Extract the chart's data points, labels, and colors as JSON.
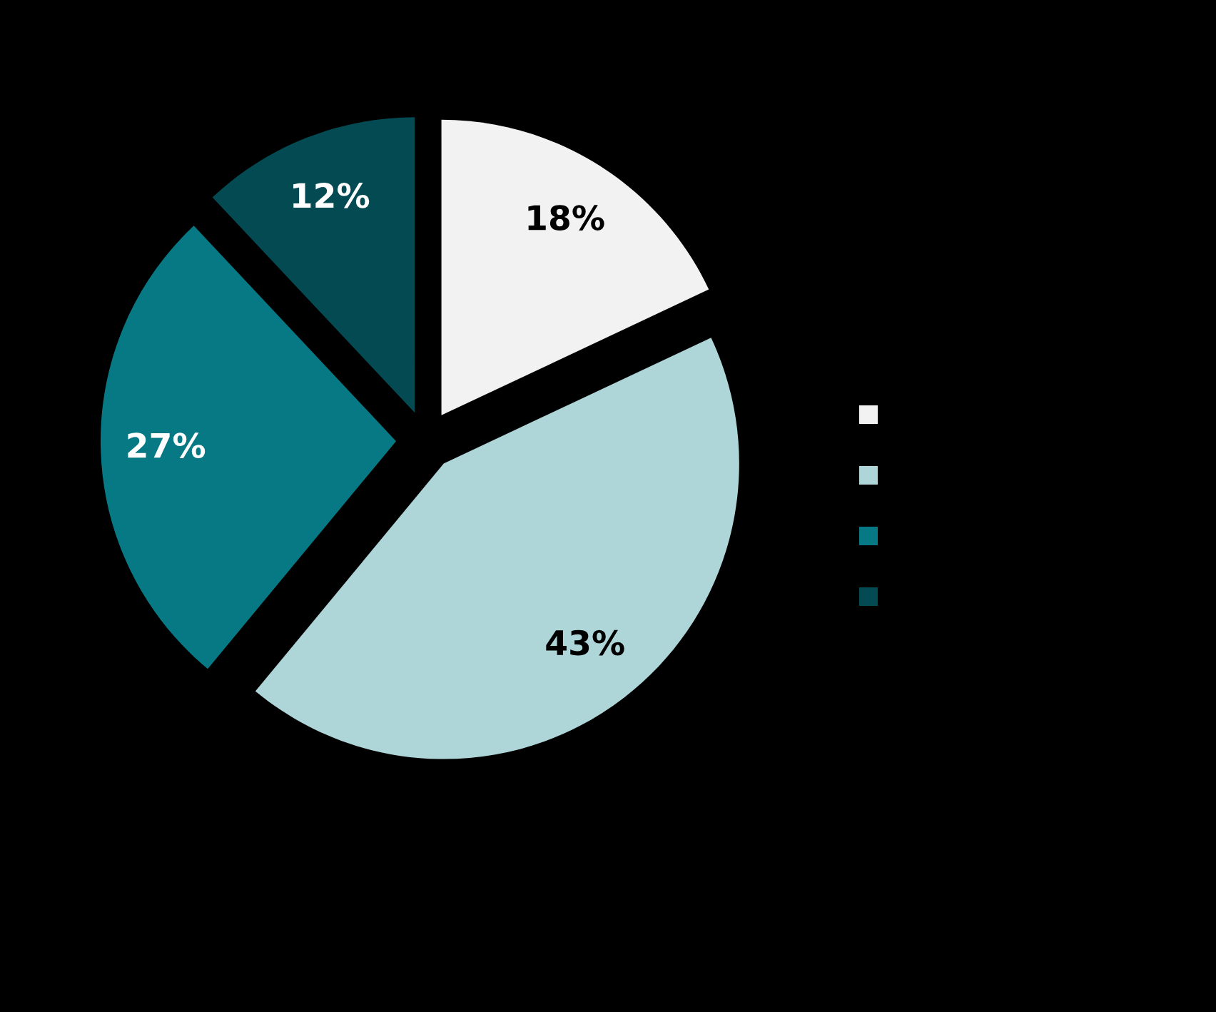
{
  "chart_data": {
    "type": "pie",
    "categories": [
      null,
      null,
      null,
      null
    ],
    "values": [
      18,
      43,
      27,
      12
    ],
    "value_labels": [
      "18%",
      "43%",
      "27%",
      "12%"
    ],
    "colors": [
      "#f2f2f2",
      "#aed5d8",
      "#077984",
      "#044a52"
    ]
  }
}
